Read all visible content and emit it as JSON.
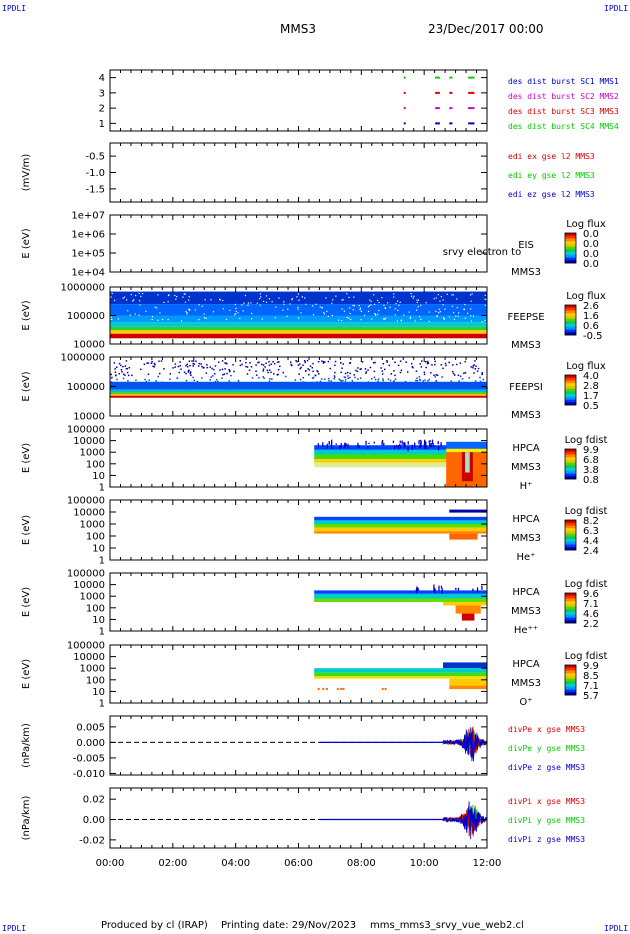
{
  "corner_labels": {
    "top_left": "IPDLI",
    "top_right": "IPDLI",
    "bottom_left": "IPDLI",
    "bottom_right": "IPDLI"
  },
  "header": {
    "spacecraft": "MMS3",
    "date": "23/Dec/2017 00:00"
  },
  "footer": {
    "produced_by": "Produced by cl (IRAP)",
    "printing_date": "Printing date: 29/Nov/2023",
    "file": "mms_mms3_srvy_vue_web2.cl"
  },
  "colors": {
    "blue": "#0000cc",
    "magenta": "#cc00cc",
    "red": "#dd0000",
    "green": "#00cc00",
    "colorbar": [
      "#0000cc",
      "#0088ff",
      "#00dddd",
      "#00dd44",
      "#aadd00",
      "#ffcc00",
      "#ff6600",
      "#cc0000"
    ]
  },
  "chart_data": {
    "type": "heatmap",
    "x_ticks": [
      "00:00",
      "02:00",
      "04:00",
      "06:00",
      "08:00",
      "10:00",
      "12:00"
    ],
    "x_range_hours": [
      0,
      12
    ],
    "panels": [
      {
        "id": "burst",
        "y_ticks": [
          "4",
          "3",
          "2",
          "1"
        ],
        "ylim": [
          0.5,
          4.5
        ],
        "ylabel": "",
        "series": [
          {
            "name": "des dist burst SC1 MMS1",
            "color": "#0000cc",
            "level": 1,
            "intervals": [
              [
                9.35,
                9.4
              ],
              [
                10.35,
                10.5
              ],
              [
                10.8,
                10.9
              ],
              [
                11.4,
                11.6
              ]
            ]
          },
          {
            "name": "des dist burst SC2 MMS2",
            "color": "#cc00cc",
            "level": 2,
            "intervals": [
              [
                9.35,
                9.4
              ],
              [
                10.35,
                10.5
              ],
              [
                10.8,
                10.9
              ],
              [
                11.4,
                11.6
              ]
            ]
          },
          {
            "name": "des dist burst SC3 MMS3",
            "color": "#dd0000",
            "level": 3,
            "intervals": [
              [
                9.35,
                9.4
              ],
              [
                10.35,
                10.5
              ],
              [
                10.8,
                10.9
              ],
              [
                11.4,
                11.6
              ]
            ]
          },
          {
            "name": "des dist burst SC4 MMS4",
            "color": "#00cc00",
            "level": 4,
            "intervals": [
              [
                9.35,
                9.4
              ],
              [
                10.35,
                10.5
              ],
              [
                10.8,
                10.9
              ],
              [
                11.4,
                11.6
              ]
            ]
          }
        ]
      },
      {
        "id": "edi",
        "ylabel": "(mV/m)",
        "y_ticks": [
          "-0.5",
          "-1.0",
          "-1.5"
        ],
        "y_tick_values": [
          -0.5,
          -1.0,
          -1.5
        ],
        "ylim": [
          -1.9,
          -0.1
        ],
        "series": [
          {
            "name": "edi ex gse l2 MMS3",
            "color": "#dd0000"
          },
          {
            "name": "edi ey gse l2 MMS3",
            "color": "#00cc00"
          },
          {
            "name": "edi ez gse l2 MMS3",
            "color": "#0000cc"
          }
        ]
      },
      {
        "id": "eis",
        "ylabel": "E (eV)",
        "y_ticks": [
          "1e+07",
          "1e+06",
          "1e+05",
          "1e+04"
        ],
        "side_labels": [
          "EIS",
          "srvy electron to",
          "MMS3"
        ],
        "colorbar_title": "Log flux",
        "colorbar_ticks": [
          "0.0",
          "0.0",
          "0.0",
          "0.0"
        ]
      },
      {
        "id": "feepse",
        "ylabel": "E (eV)",
        "y_ticks": [
          "1000000",
          "100000",
          "10000"
        ],
        "ylim_log": [
          4,
          6
        ],
        "side_labels": [
          "FEEPSE",
          "MMS3"
        ],
        "colorbar_title": "Log flux",
        "colorbar_ticks": [
          "2.6",
          "1.6",
          "0.6",
          "-0.5"
        ]
      },
      {
        "id": "feepsi",
        "ylabel": "E (eV)",
        "y_ticks": [
          "1000000",
          "100000",
          "10000"
        ],
        "ylim_log": [
          4,
          6
        ],
        "side_labels": [
          "FEEPSI",
          "MMS3"
        ],
        "colorbar_title": "Log flux",
        "colorbar_ticks": [
          "4.0",
          "2.8",
          "1.7",
          "0.5"
        ]
      },
      {
        "id": "hpca_h",
        "ylabel": "E (eV)",
        "y_ticks": [
          "100000",
          "10000",
          "1000",
          "100",
          "10",
          "1"
        ],
        "ylim_log": [
          0,
          5
        ],
        "side_labels": [
          "HPCA",
          "MMS3",
          "H⁺"
        ],
        "colorbar_title": "Log fdist",
        "colorbar_ticks": [
          "9.9",
          "6.8",
          "3.8",
          "0.8"
        ]
      },
      {
        "id": "hpca_he",
        "ylabel": "E (eV)",
        "y_ticks": [
          "100000",
          "10000",
          "1000",
          "100",
          "10",
          "1"
        ],
        "ylim_log": [
          0,
          5
        ],
        "side_labels": [
          "HPCA",
          "MMS3",
          "He⁺"
        ],
        "colorbar_title": "Log fdist",
        "colorbar_ticks": [
          "8.2",
          "6.3",
          "4.4",
          "2.4"
        ]
      },
      {
        "id": "hpca_he2",
        "ylabel": "E (eV)",
        "y_ticks": [
          "100000",
          "10000",
          "1000",
          "100",
          "10",
          "1"
        ],
        "ylim_log": [
          0,
          5
        ],
        "side_labels": [
          "HPCA",
          "MMS3",
          "He⁺⁺"
        ],
        "colorbar_title": "Log fdist",
        "colorbar_ticks": [
          "9.6",
          "7.1",
          "4.6",
          "2.2"
        ]
      },
      {
        "id": "hpca_o",
        "ylabel": "E (eV)",
        "y_ticks": [
          "100000",
          "10000",
          "1000",
          "100",
          "10",
          "1"
        ],
        "ylim_log": [
          0,
          5
        ],
        "side_labels": [
          "HPCA",
          "MMS3",
          "O⁺"
        ],
        "colorbar_title": "Log fdist",
        "colorbar_ticks": [
          "9.9",
          "8.5",
          "7.1",
          "5.7"
        ]
      },
      {
        "id": "divpe",
        "ylabel": "(nPa/km)",
        "y_ticks": [
          "0.005",
          "0.000",
          "-0.005",
          "-0.010"
        ],
        "y_tick_values": [
          0.005,
          0.0,
          -0.005,
          -0.01
        ],
        "ylim": [
          -0.0105,
          0.0085
        ],
        "series": [
          {
            "name": "divPe x gse MMS3",
            "color": "#dd0000"
          },
          {
            "name": "divPe y gse MMS3",
            "color": "#00cc00"
          },
          {
            "name": "divPe z gse MMS3",
            "color": "#0000cc"
          }
        ]
      },
      {
        "id": "divpi",
        "ylabel": "(nPa/km)",
        "y_ticks": [
          "0.02",
          "0.00",
          "-0.02"
        ],
        "y_tick_values": [
          0.02,
          0.0,
          -0.02
        ],
        "ylim": [
          -0.028,
          0.031
        ],
        "series": [
          {
            "name": "divPi x gse MMS3",
            "color": "#dd0000"
          },
          {
            "name": "divPi y gse MMS3",
            "color": "#00cc00"
          },
          {
            "name": "divPi z gse MMS3",
            "color": "#0000cc"
          }
        ]
      }
    ]
  }
}
